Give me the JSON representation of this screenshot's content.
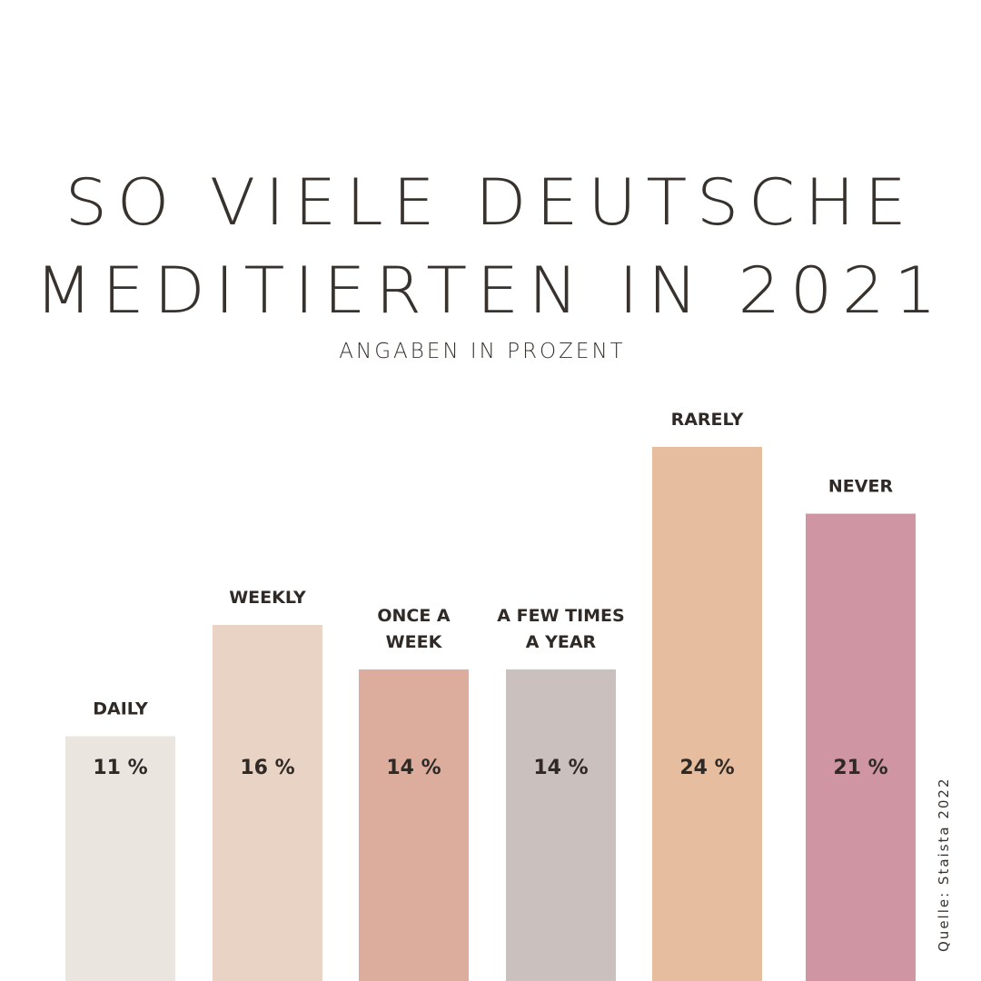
{
  "title_line1": "SO VIELE DEUTSCHE",
  "title_line2": "MEDITIERTEN IN 2021",
  "subtitle": "ANGABEN IN PROZENT",
  "source": "Quelle: Staista 2022",
  "chart_data": {
    "type": "bar",
    "title": "SO VIELE DEUTSCHE MEDITIERTEN IN 2021",
    "subtitle": "ANGABEN IN PROZENT",
    "categories": [
      "DAILY",
      "WEEKLY",
      "ONCE A WEEK",
      "A FEW TIMES A YEAR",
      "RARELY",
      "NEVER"
    ],
    "category_lines": [
      [
        "DAILY"
      ],
      [
        "WEEKLY"
      ],
      [
        "ONCE A",
        "WEEK"
      ],
      [
        "A FEW TIMES",
        "A YEAR"
      ],
      [
        "RARELY"
      ],
      [
        "NEVER"
      ]
    ],
    "values": [
      11,
      16,
      14,
      14,
      24,
      21
    ],
    "value_labels": [
      "11 %",
      "16 %",
      "14 %",
      "14 %",
      "24 %",
      "21 %"
    ],
    "colors": [
      "#ebe5df",
      "#e8d3c4",
      "#dcad9c",
      "#cac0bd",
      "#e6bd9f",
      "#cf95a2"
    ],
    "grid": false,
    "legend": "none"
  }
}
